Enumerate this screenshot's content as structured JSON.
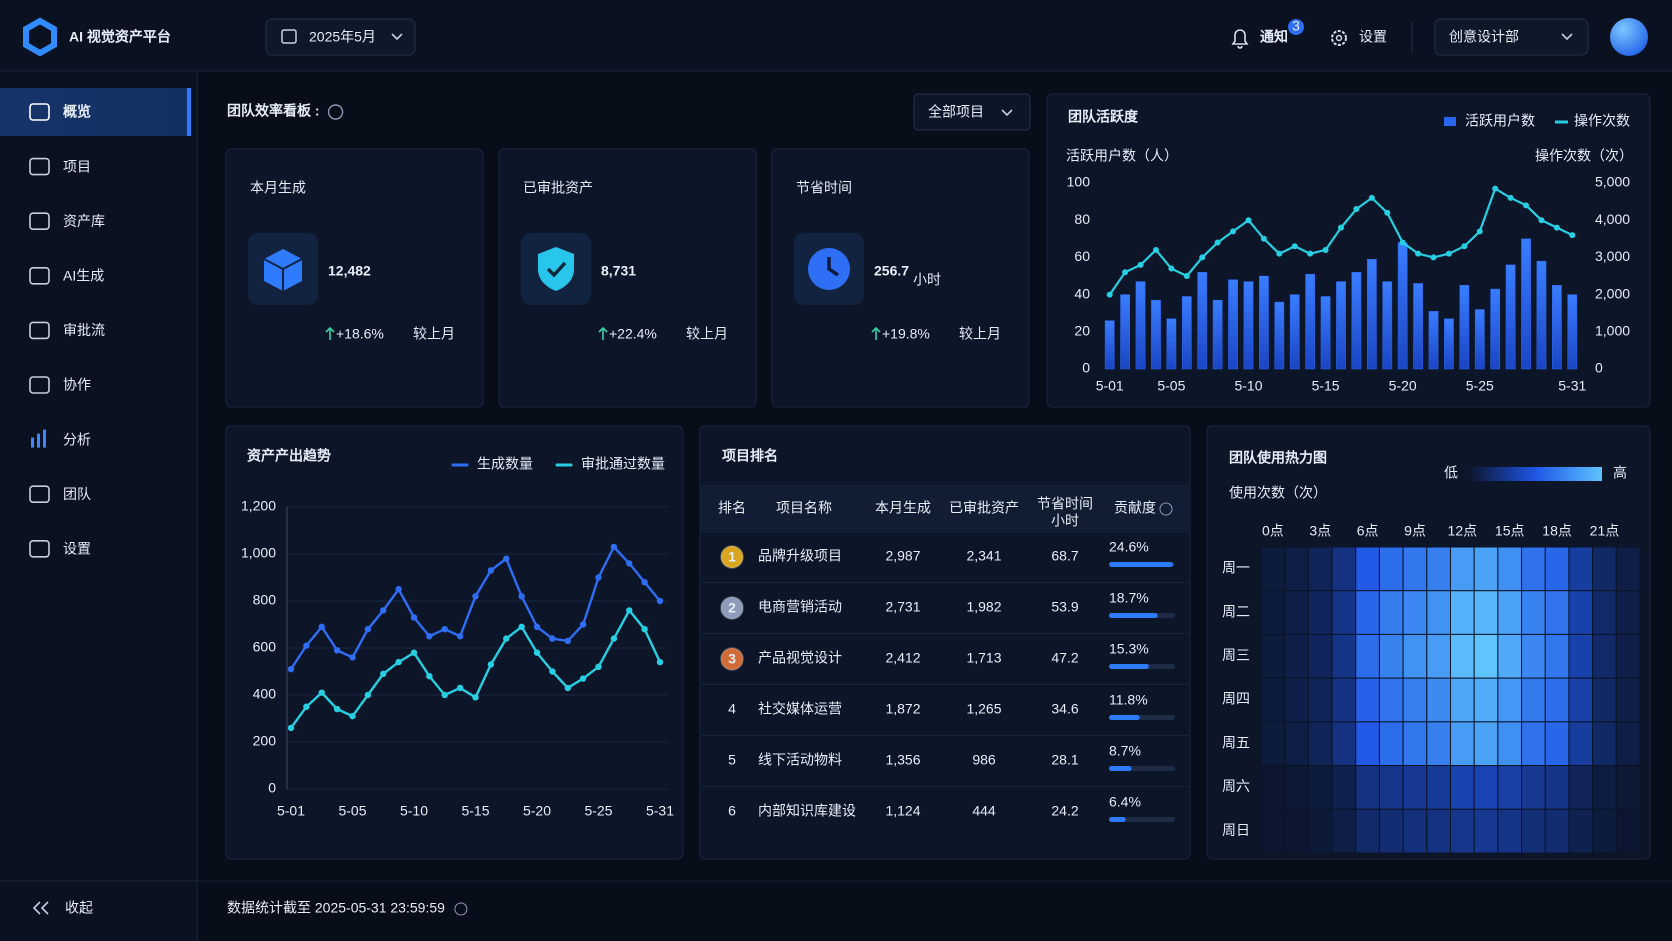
{
  "header": {
    "logo_text": "AI 视觉资产平台",
    "date": "2025年5月",
    "notify": "通知",
    "notify_badge": "3",
    "settings": "设置",
    "dept": "创意设计部"
  },
  "sidebar": {
    "items": [
      "概览",
      "项目",
      "资产库",
      "AI生成",
      "审批流",
      "协作",
      "分析",
      "团队",
      "设置"
    ],
    "active": 0,
    "accent": 6,
    "collapse": "收起"
  },
  "page": {
    "title": "团队效率看板 :",
    "filter": "全部项目",
    "footer": "数据统计截至 2025-05-31 23:59:59"
  },
  "kpis": [
    {
      "title": "本月生成",
      "value": "12,482",
      "change": "+18.6%",
      "compare": "较上月"
    },
    {
      "title": "已审批资产",
      "value": "8,731",
      "change": "+22.4%",
      "compare": "较上月"
    },
    {
      "title": "节省时间",
      "value": "256.7",
      "unit": "小时",
      "change": "+19.8%",
      "compare": "较上月"
    }
  ],
  "chart_data": [
    {
      "type": "bar_line",
      "title": "团队活跃度",
      "y_label": "活跃用户数（人）",
      "y2_label": "操作次数（次）",
      "categories": [
        "5-01",
        null,
        null,
        null,
        "5-05",
        null,
        null,
        null,
        null,
        "5-10",
        null,
        null,
        null,
        null,
        "5-15",
        null,
        null,
        null,
        null,
        "5-20",
        null,
        null,
        null,
        null,
        "5-25",
        null,
        null,
        null,
        null,
        null,
        "5-31"
      ],
      "series": [
        {
          "name": "活跃用户数",
          "type": "bar",
          "color": "#2a66f2",
          "values": [
            26,
            40,
            47,
            37,
            27,
            39,
            52,
            37,
            48,
            47,
            50,
            36,
            40,
            51,
            39,
            47,
            52,
            59,
            47,
            68,
            46,
            31,
            27,
            45,
            32,
            43,
            56,
            70,
            58,
            45,
            40
          ]
        },
        {
          "name": "操作次数",
          "type": "line",
          "axis": "y2",
          "color": "#27cfe3",
          "values": [
            2000,
            2600,
            2800,
            3200,
            2700,
            2500,
            3000,
            3400,
            3700,
            4000,
            3500,
            3100,
            3300,
            3100,
            3200,
            3800,
            4300,
            4600,
            4200,
            3400,
            3100,
            3000,
            3100,
            3300,
            3700,
            4850,
            4600,
            4400,
            4000,
            3800,
            3600
          ]
        }
      ],
      "ylim": [
        0,
        100
      ],
      "yticks": [
        0,
        20,
        40,
        60,
        80,
        100
      ],
      "y2lim": [
        0,
        5000
      ],
      "y2ticks": [
        0,
        {
          "value": 1000,
          "label": "1,000"
        },
        {
          "value": 2000,
          "label": "2,000"
        },
        {
          "value": 3000,
          "label": "3,000"
        },
        {
          "value": 4000,
          "label": "4,000"
        },
        {
          "value": 5000,
          "label": "5,000"
        }
      ],
      "grid": false
    },
    {
      "type": "line",
      "title": "资产产出趋势",
      "categories": [
        "5-01",
        null,
        null,
        null,
        "5-05",
        null,
        null,
        null,
        "5-10",
        null,
        null,
        null,
        "5-15",
        null,
        null,
        null,
        "5-20",
        null,
        null,
        null,
        "5-25",
        null,
        null,
        null,
        "5-31"
      ],
      "series": [
        {
          "name": "生成数量",
          "color": "#2f6df5",
          "values": [
            510,
            610,
            690,
            590,
            560,
            680,
            760,
            850,
            730,
            650,
            680,
            650,
            820,
            930,
            980,
            820,
            690,
            640,
            630,
            700,
            900,
            1030,
            960,
            880,
            800
          ]
        },
        {
          "name": "审批通过数量",
          "color": "#27cfe3",
          "values": [
            260,
            350,
            410,
            340,
            310,
            400,
            490,
            540,
            580,
            480,
            400,
            430,
            390,
            530,
            640,
            690,
            580,
            500,
            430,
            470,
            520,
            640,
            760,
            680,
            540
          ]
        }
      ],
      "ylim": [
        0,
        1200
      ],
      "yticks": [
        0,
        200,
        400,
        600,
        800,
        {
          "value": 1000,
          "label": "1,000"
        },
        {
          "value": 1200,
          "label": "1,200"
        }
      ],
      "grid": true
    },
    {
      "type": "heatmap",
      "title": "团队使用热力图",
      "y_label": "使用次数（次）",
      "legend_low": "低",
      "legend_high": "高",
      "x": [
        "0点",
        null,
        "3点",
        null,
        "6点",
        null,
        "9点",
        null,
        "12点",
        null,
        "15点",
        null,
        "18点",
        null,
        "21点",
        null
      ],
      "y": [
        "周一",
        "周二",
        "周三",
        "周四",
        "周五",
        "周六",
        "周日"
      ],
      "values": [
        [
          5,
          7,
          11,
          20,
          45,
          52,
          56,
          59,
          70,
          72,
          65,
          54,
          50,
          27,
          14,
          7
        ],
        [
          5,
          8,
          12,
          22,
          50,
          58,
          62,
          66,
          78,
          80,
          72,
          60,
          55,
          30,
          15,
          8
        ],
        [
          5,
          8,
          12,
          22,
          52,
          60,
          66,
          70,
          82,
          85,
          75,
          62,
          56,
          30,
          15,
          8
        ],
        [
          5,
          8,
          11,
          21,
          48,
          55,
          59,
          63,
          74,
          76,
          68,
          57,
          52,
          29,
          14,
          8
        ],
        [
          5,
          7,
          11,
          20,
          45,
          52,
          56,
          59,
          70,
          72,
          65,
          54,
          50,
          27,
          14,
          7
        ],
        [
          2,
          3,
          5,
          9,
          20,
          23,
          25,
          26,
          31,
          32,
          29,
          24,
          22,
          12,
          6,
          3
        ],
        [
          2,
          2,
          4,
          7,
          15,
          17,
          19,
          20,
          23,
          24,
          22,
          18,
          17,
          9,
          5,
          2
        ]
      ],
      "colors": [
        "#0c1630",
        "#1f56e6",
        "#5fc4ff"
      ]
    }
  ],
  "table": {
    "title": "项目排名",
    "columns": [
      "排名",
      "项目名称",
      "本月生成",
      "已审批资产",
      "节省时间",
      "贡献度"
    ],
    "column_sub": "小时",
    "medal_colors": [
      "#d9a521",
      "#8d9cb8",
      "#d06a36"
    ],
    "rows": [
      {
        "rank": "1",
        "name": "品牌升级项目",
        "generated": "2,987",
        "approved": "2,341",
        "saved": "68.7",
        "share": 24.6,
        "share_label": "24.6%"
      },
      {
        "rank": "2",
        "name": "电商营销活动",
        "generated": "2,731",
        "approved": "1,982",
        "saved": "53.9",
        "share": 18.7,
        "share_label": "18.7%"
      },
      {
        "rank": "3",
        "name": "产品视觉设计",
        "generated": "2,412",
        "approved": "1,713",
        "saved": "47.2",
        "share": 15.3,
        "share_label": "15.3%"
      },
      {
        "rank": "4",
        "name": "社交媒体运营",
        "generated": "1,872",
        "approved": "1,265",
        "saved": "34.6",
        "share": 11.8,
        "share_label": "11.8%"
      },
      {
        "rank": "5",
        "name": "线下活动物料",
        "generated": "1,356",
        "approved": "986",
        "saved": "28.1",
        "share": 8.7,
        "share_label": "8.7%"
      },
      {
        "rank": "6",
        "name": "内部知识库建设",
        "generated": "1,124",
        "approved": "444",
        "saved": "24.2",
        "share": 6.4,
        "share_label": "6.4%"
      }
    ]
  }
}
